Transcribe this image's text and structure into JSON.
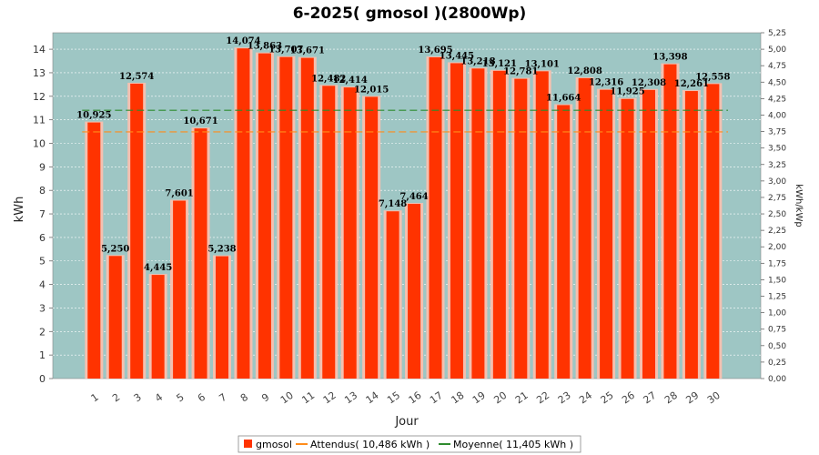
{
  "chart_data": {
    "type": "bar",
    "title": "6-2025( gmosol )(2800Wp)",
    "xlabel": "Jour",
    "ylabel": "kWh",
    "y2label": "kWh/kWp",
    "ylim": [
      0,
      14.7
    ],
    "yticks": [
      "0",
      "1",
      "2",
      "3",
      "4",
      "5",
      "6",
      "7",
      "8",
      "9",
      "10",
      "11",
      "12",
      "13",
      "14"
    ],
    "y2ticks": [
      "0,00",
      "0,25",
      "0,50",
      "0,75",
      "1,00",
      "1,25",
      "1,50",
      "1,75",
      "2,00",
      "2,25",
      "2,50",
      "2,75",
      "3,00",
      "3,25",
      "3,50",
      "3,75",
      "4,00",
      "4,25",
      "4,50",
      "4,75",
      "5,00",
      "5,25"
    ],
    "categories": [
      "1",
      "2",
      "3",
      "4",
      "5",
      "6",
      "7",
      "8",
      "9",
      "10",
      "11",
      "12",
      "13",
      "14",
      "15",
      "16",
      "17",
      "18",
      "19",
      "20",
      "21",
      "22",
      "23",
      "24",
      "25",
      "26",
      "27",
      "28",
      "29",
      "30"
    ],
    "series": [
      {
        "name": "gmosol",
        "values": [
          10.925,
          5.25,
          12.574,
          4.445,
          7.601,
          10.671,
          5.238,
          14.074,
          13.863,
          13.707,
          13.671,
          12.482,
          12.414,
          12.015,
          7.148,
          7.464,
          13.695,
          13.445,
          13.218,
          13.121,
          12.781,
          13.101,
          11.664,
          12.808,
          12.316,
          11.925,
          12.308,
          13.398,
          12.261,
          12.558
        ],
        "labels": [
          "10,925",
          "5,250",
          "12,574",
          "4,445",
          "7,601",
          "10,671",
          "5,238",
          "14,074",
          "13,863",
          "13,707",
          "13,671",
          "12,482",
          "12,414",
          "12,015",
          "7,148",
          "7,464",
          "13,695",
          "13,445",
          "13,218",
          "13,121",
          "12,781",
          "13,101",
          "11,664",
          "12,808",
          "12,316",
          "11,925",
          "12,308",
          "13,398",
          "12,261",
          "12,558"
        ],
        "color": "#ff3300"
      }
    ],
    "lines": [
      {
        "name": "Attendus( 10,486 kWh )",
        "value": 10.486,
        "color": "#ff8c1a"
      },
      {
        "name": "Moyenne( 11,405 kWh )",
        "value": 11.405,
        "color": "#2e8b2e"
      }
    ],
    "plot_background": "#9ec6c4",
    "grid": true,
    "legend_position": "bottom"
  }
}
